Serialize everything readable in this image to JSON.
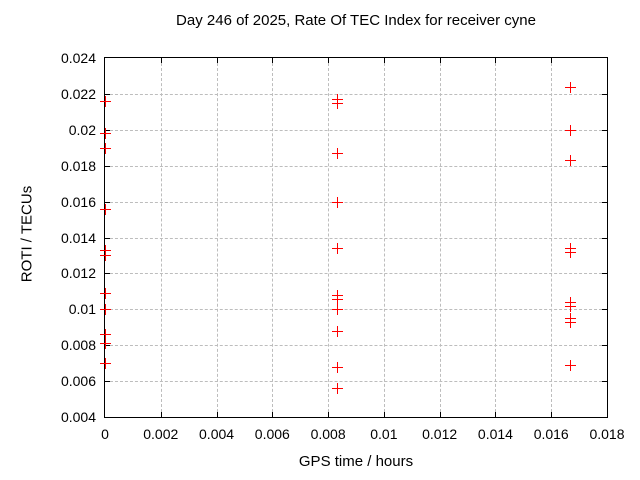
{
  "chart_data": {
    "type": "scatter",
    "title": "Day 246 of 2025, Rate Of TEC Index for receiver cyne",
    "xlabel": "GPS time / hours",
    "ylabel": "ROTI / TECUs",
    "xlim": [
      0,
      0.018
    ],
    "ylim": [
      0.004,
      0.024
    ],
    "grid": true,
    "legend_position": "none",
    "marker": "plus",
    "marker_color": "#ff0000",
    "grid_color": "#bdbdbd",
    "axis_color": "#000000",
    "background_color": "#ffffff",
    "xticks": [
      {
        "v": 0.0,
        "label": "0"
      },
      {
        "v": 0.002,
        "label": "0.002"
      },
      {
        "v": 0.004,
        "label": "0.004"
      },
      {
        "v": 0.006,
        "label": "0.006"
      },
      {
        "v": 0.008,
        "label": "0.008"
      },
      {
        "v": 0.01,
        "label": "0.01"
      },
      {
        "v": 0.012,
        "label": "0.012"
      },
      {
        "v": 0.014,
        "label": "0.014"
      },
      {
        "v": 0.016,
        "label": "0.016"
      },
      {
        "v": 0.018,
        "label": "0.018"
      }
    ],
    "yticks": [
      {
        "v": 0.004,
        "label": "0.004"
      },
      {
        "v": 0.006,
        "label": "0.006"
      },
      {
        "v": 0.008,
        "label": "0.008"
      },
      {
        "v": 0.01,
        "label": "0.01"
      },
      {
        "v": 0.012,
        "label": "0.012"
      },
      {
        "v": 0.014,
        "label": "0.014"
      },
      {
        "v": 0.016,
        "label": "0.016"
      },
      {
        "v": 0.018,
        "label": "0.018"
      },
      {
        "v": 0.02,
        "label": "0.02"
      },
      {
        "v": 0.022,
        "label": "0.022"
      },
      {
        "v": 0.024,
        "label": "0.024"
      }
    ],
    "series": [
      {
        "name": "ROTI",
        "points": [
          [
            0,
            0.0216
          ],
          [
            0,
            0.0198
          ],
          [
            0,
            0.019
          ],
          [
            0,
            0.0156
          ],
          [
            0,
            0.0133
          ],
          [
            0,
            0.013
          ],
          [
            0,
            0.0109
          ],
          [
            0,
            0.01
          ],
          [
            0,
            0.0086
          ],
          [
            0,
            0.0081
          ],
          [
            0,
            0.007
          ],
          [
            0.00833,
            0.0217
          ],
          [
            0.00833,
            0.0215
          ],
          [
            0.00833,
            0.0187
          ],
          [
            0.00833,
            0.016
          ],
          [
            0.00833,
            0.0134
          ],
          [
            0.00833,
            0.0108
          ],
          [
            0.00833,
            0.0106
          ],
          [
            0.00833,
            0.01
          ],
          [
            0.00833,
            0.0088
          ],
          [
            0.00833,
            0.0068
          ],
          [
            0.00833,
            0.0056
          ],
          [
            0.01667,
            0.0224
          ],
          [
            0.01667,
            0.02
          ],
          [
            0.01667,
            0.0183
          ],
          [
            0.01667,
            0.0134
          ],
          [
            0.01667,
            0.0132
          ],
          [
            0.01667,
            0.0104
          ],
          [
            0.01667,
            0.0102
          ],
          [
            0.01667,
            0.0095
          ],
          [
            0.01667,
            0.0093
          ],
          [
            0.01667,
            0.0069
          ]
        ]
      }
    ]
  }
}
